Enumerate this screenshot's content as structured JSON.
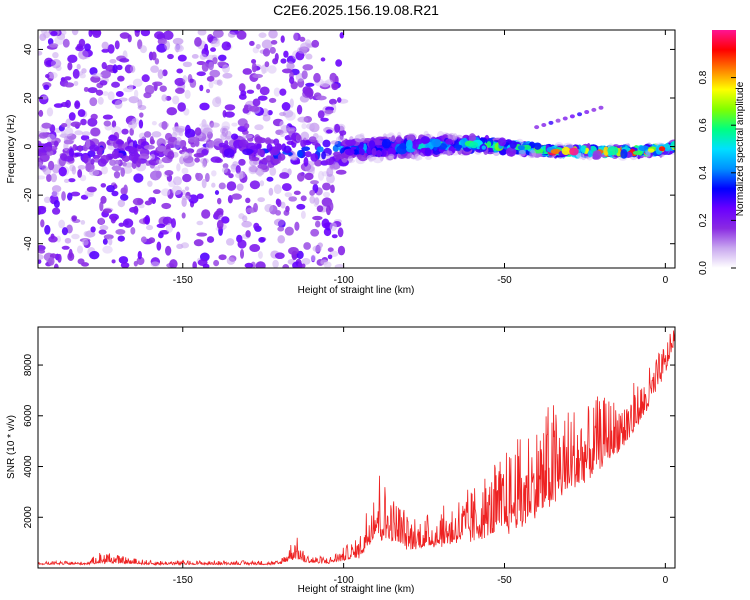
{
  "title": "C2E6.2025.156.19.08.R21",
  "colors": {
    "snr_line": "#ee2222",
    "background": "#ffffff",
    "axis": "#000000",
    "colormap": [
      "#ffffff",
      "#c9a8ef",
      "#8a2be2",
      "#6a00ff",
      "#0000ff",
      "#0090ff",
      "#00e0ff",
      "#00ff80",
      "#80ff00",
      "#ffff00",
      "#ff8000",
      "#ff0000",
      "#ff1493"
    ]
  },
  "chart_data": [
    {
      "type": "heatmap",
      "xlabel": "Height of straight line (km)",
      "ylabel": "Frequency (Hz)",
      "xlim": [
        -195,
        3
      ],
      "ylim": [
        -50,
        48
      ],
      "xticks": [
        {
          "value": -150,
          "label": "-150"
        },
        {
          "value": -100,
          "label": "-100"
        },
        {
          "value": -50,
          "label": "-50"
        },
        {
          "value": 0,
          "label": "0"
        }
      ],
      "yticks": [
        {
          "value": -40,
          "label": "-40"
        },
        {
          "value": -20,
          "label": "-20"
        },
        {
          "value": 0,
          "label": "0"
        },
        {
          "value": 20,
          "label": "20"
        },
        {
          "value": 40,
          "label": "40"
        }
      ],
      "colorbar": {
        "label": "Normalized spectral amplitude",
        "range": [
          0,
          1
        ],
        "ticks": [
          {
            "value": 0.0,
            "label": "0.0"
          },
          {
            "value": 0.2,
            "label": "0.2"
          },
          {
            "value": 0.4,
            "label": "0.4"
          },
          {
            "value": 0.6,
            "label": "0.6"
          },
          {
            "value": 0.8,
            "label": "0.8"
          }
        ]
      },
      "ridge": {
        "x": [
          -195,
          -170,
          -150,
          -120,
          -100,
          -80,
          -60,
          -50,
          -40,
          -35,
          -20,
          -10,
          0,
          3
        ],
        "frequency": [
          -2,
          -2,
          -1,
          -2,
          -1,
          0,
          1,
          0,
          -1,
          -2,
          -2,
          -2,
          -1,
          0
        ],
        "amplitude": [
          0.25,
          0.3,
          0.2,
          0.35,
          0.4,
          0.5,
          0.6,
          0.7,
          0.75,
          0.9,
          0.95,
          0.95,
          0.9,
          0.85
        ]
      },
      "features": [
        {
          "x": [
            -40,
            -20
          ],
          "frequency": [
            8,
            16
          ],
          "amplitude": 0.25
        }
      ]
    },
    {
      "type": "line",
      "xlabel": "Height of straight line (km)",
      "ylabel": "SNR (10 * v/v)",
      "xlim": [
        -195,
        3
      ],
      "ylim": [
        0,
        9500
      ],
      "xticks": [
        {
          "value": -150,
          "label": "-150"
        },
        {
          "value": -100,
          "label": "-100"
        },
        {
          "value": -50,
          "label": "-50"
        },
        {
          "value": 0,
          "label": "0"
        }
      ],
      "yticks": [
        {
          "value": 2000,
          "label": "2000"
        },
        {
          "value": 4000,
          "label": "4000"
        },
        {
          "value": 6000,
          "label": "6000"
        },
        {
          "value": 8000,
          "label": "8000"
        }
      ],
      "envelope": {
        "x": [
          -195,
          -180,
          -175,
          -170,
          -160,
          -140,
          -120,
          -115,
          -112,
          -105,
          -95,
          -90,
          -85,
          -80,
          -75,
          -70,
          -60,
          -50,
          -45,
          -40,
          -35,
          -30,
          -25,
          -20,
          -15,
          -10,
          -5,
          0,
          3
        ],
        "base": [
          150,
          150,
          250,
          200,
          150,
          150,
          150,
          500,
          250,
          200,
          500,
          1500,
          1200,
          900,
          900,
          1000,
          1300,
          1700,
          2000,
          2500,
          3000,
          3300,
          3800,
          4300,
          4800,
          5500,
          6500,
          7800,
          9000
        ],
        "spread": [
          120,
          120,
          500,
          300,
          150,
          150,
          150,
          900,
          300,
          250,
          800,
          3000,
          2000,
          1400,
          1200,
          1500,
          2000,
          3000,
          3500,
          3800,
          3800,
          3500,
          3000,
          2600,
          2300,
          1900,
          1500,
          1200,
          700
        ]
      }
    }
  ]
}
